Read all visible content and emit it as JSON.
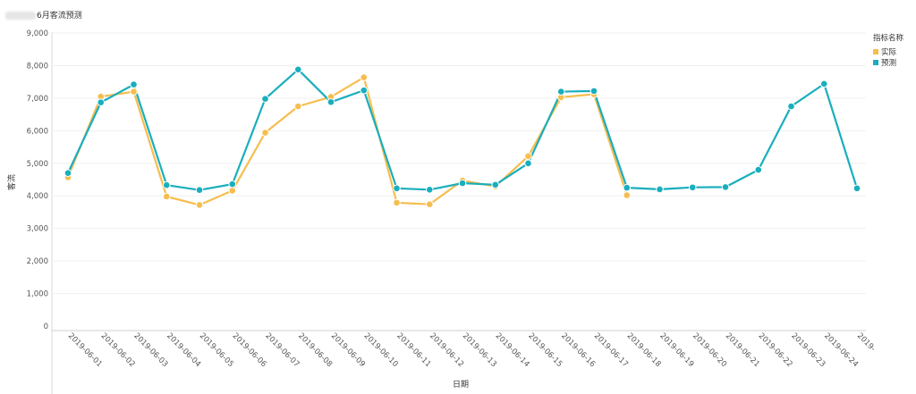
{
  "title": "6月客流预测",
  "legend": {
    "title": "指标名称",
    "items": [
      {
        "label": "实际",
        "color": "#f6be4e"
      },
      {
        "label": "预测",
        "color": "#19aebd"
      }
    ]
  },
  "chart_data": {
    "type": "line",
    "xlabel": "日期",
    "ylabel": "客流",
    "ylim": [
      0,
      9000
    ],
    "yticks": [
      "0",
      "1,000",
      "2,000",
      "3,000",
      "4,000",
      "5,000",
      "6,000",
      "7,000",
      "8,000",
      "9,000"
    ],
    "categories": [
      "2019-06-01",
      "2019-06-02",
      "2019-06-03",
      "2019-06-04",
      "2019-06-05",
      "2019-06-06",
      "2019-06-07",
      "2019-06-08",
      "2019-06-09",
      "2019-06-10",
      "2019-06-11",
      "2019-06-12",
      "2019-06-13",
      "2019-06-14",
      "2019-06-15",
      "2019-06-16",
      "2019-06-17",
      "2019-06-18",
      "2019-06-19",
      "2019-06-20",
      "2019-06-21",
      "2019-06-22",
      "2019-06-23",
      "2019-06-24",
      "2019-"
    ],
    "series": [
      {
        "name": "实际",
        "color": "#f6be4e",
        "values": [
          4570,
          7050,
          7200,
          3980,
          3720,
          4160,
          5940,
          6750,
          7040,
          7640,
          3790,
          3740,
          4470,
          4290,
          5220,
          7030,
          7120,
          4020,
          null,
          null,
          null,
          null,
          null,
          null,
          null
        ]
      },
      {
        "name": "预测",
        "color": "#19aebd",
        "values": [
          4700,
          6870,
          7420,
          4330,
          4180,
          4360,
          6980,
          7880,
          6880,
          7240,
          4230,
          4190,
          4390,
          4340,
          5000,
          7200,
          7220,
          4250,
          4200,
          4260,
          4270,
          4800,
          6750,
          7440,
          4230
        ]
      }
    ]
  }
}
